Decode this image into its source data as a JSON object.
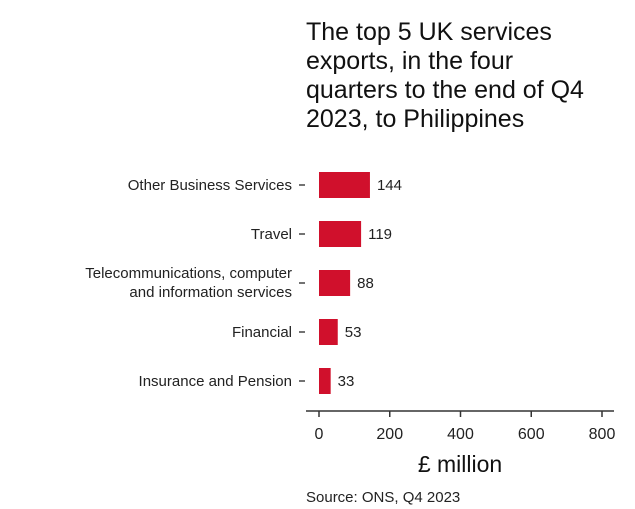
{
  "chart_data": {
    "type": "bar",
    "orientation": "horizontal",
    "title_lines": [
      "The top 5 UK services",
      "exports, in the four",
      "quarters to the end of Q4",
      "2023, to Philippines"
    ],
    "categories": [
      [
        "Other Business Services"
      ],
      [
        "Travel"
      ],
      [
        "Telecommunications, computer",
        "and information services"
      ],
      [
        "Financial"
      ],
      [
        "Insurance and Pension"
      ]
    ],
    "values": [
      144,
      119,
      88,
      53,
      33
    ],
    "xlabel": "£ million",
    "xlim": [
      0,
      800
    ],
    "xticks": [
      "0",
      "200",
      "400",
      "600",
      "800"
    ],
    "bar_color": "#d0102c",
    "grid": false,
    "source": "Source: ONS, Q4 2023"
  }
}
